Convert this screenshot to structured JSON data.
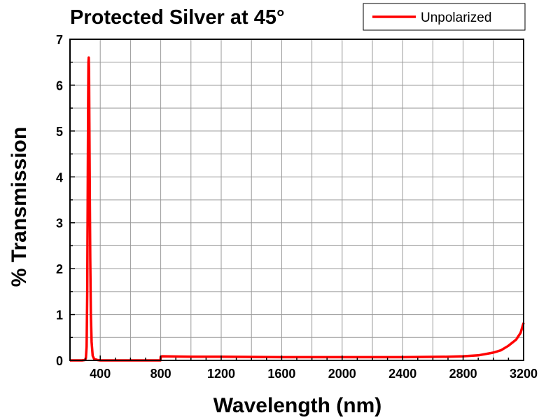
{
  "chart_data": {
    "type": "line",
    "title": "Protected Silver at 45°",
    "xlabel": "Wavelength (nm)",
    "ylabel": "% Transmission",
    "xlim": [
      200,
      3200
    ],
    "ylim": [
      0,
      7
    ],
    "x_ticks": [
      400,
      800,
      1200,
      1600,
      2000,
      2400,
      2800,
      3200
    ],
    "y_ticks": [
      0,
      1,
      2,
      3,
      4,
      5,
      6,
      7
    ],
    "grid": true,
    "legend_position": "top-right",
    "series": [
      {
        "name": "Unpolarized",
        "color": "#ff0000",
        "points": [
          [
            200,
            0.0
          ],
          [
            280,
            0.0
          ],
          [
            300,
            0.01
          ],
          [
            305,
            0.05
          ],
          [
            310,
            0.3
          ],
          [
            314,
            1.5
          ],
          [
            317,
            3.5
          ],
          [
            320,
            5.6
          ],
          [
            322,
            6.5
          ],
          [
            324,
            6.6
          ],
          [
            326,
            6.3
          ],
          [
            328,
            5.2
          ],
          [
            331,
            3.6
          ],
          [
            334,
            2.2
          ],
          [
            338,
            1.0
          ],
          [
            343,
            0.4
          ],
          [
            350,
            0.1
          ],
          [
            360,
            0.03
          ],
          [
            380,
            0.01
          ],
          [
            400,
            0.0
          ],
          [
            798,
            0.0
          ],
          [
            800,
            0.08
          ],
          [
            810,
            0.09
          ],
          [
            1000,
            0.08
          ],
          [
            1200,
            0.08
          ],
          [
            1600,
            0.07
          ],
          [
            2000,
            0.07
          ],
          [
            2400,
            0.07
          ],
          [
            2700,
            0.08
          ],
          [
            2800,
            0.09
          ],
          [
            2900,
            0.11
          ],
          [
            3000,
            0.17
          ],
          [
            3050,
            0.22
          ],
          [
            3100,
            0.32
          ],
          [
            3150,
            0.45
          ],
          [
            3180,
            0.6
          ],
          [
            3200,
            0.82
          ]
        ]
      }
    ]
  }
}
